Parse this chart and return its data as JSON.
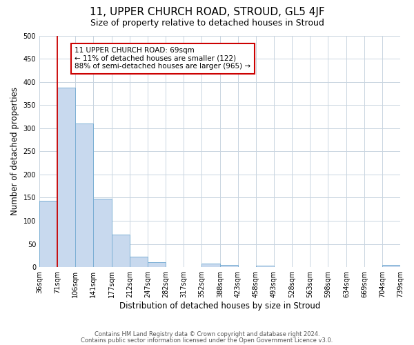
{
  "title": "11, UPPER CHURCH ROAD, STROUD, GL5 4JF",
  "subtitle": "Size of property relative to detached houses in Stroud",
  "xlabel": "Distribution of detached houses by size in Stroud",
  "ylabel": "Number of detached properties",
  "bin_edges": [
    36,
    71,
    106,
    141,
    177,
    212,
    247,
    282,
    317,
    352,
    388,
    423,
    458,
    493,
    528,
    563,
    598,
    634,
    669,
    704,
    739
  ],
  "bar_heights": [
    144,
    387,
    310,
    148,
    70,
    23,
    10,
    0,
    0,
    8,
    5,
    0,
    4,
    0,
    0,
    0,
    0,
    0,
    0,
    5
  ],
  "bar_color": "#c8d9ee",
  "bar_edge_color": "#7bafd4",
  "tick_labels": [
    "36sqm",
    "71sqm",
    "106sqm",
    "141sqm",
    "177sqm",
    "212sqm",
    "247sqm",
    "282sqm",
    "317sqm",
    "352sqm",
    "388sqm",
    "423sqm",
    "458sqm",
    "493sqm",
    "528sqm",
    "563sqm",
    "598sqm",
    "634sqm",
    "669sqm",
    "704sqm",
    "739sqm"
  ],
  "ylim": [
    0,
    500
  ],
  "yticks": [
    0,
    50,
    100,
    150,
    200,
    250,
    300,
    350,
    400,
    450,
    500
  ],
  "red_line_x": 71,
  "annotation_text": "11 UPPER CHURCH ROAD: 69sqm\n← 11% of detached houses are smaller (122)\n88% of semi-detached houses are larger (965) →",
  "annotation_box_color": "#ffffff",
  "annotation_box_edge_color": "#cc0000",
  "footer_line1": "Contains HM Land Registry data © Crown copyright and database right 2024.",
  "footer_line2": "Contains public sector information licensed under the Open Government Licence v3.0.",
  "bg_color": "#ffffff",
  "grid_color": "#c8d4e0",
  "title_fontsize": 11,
  "subtitle_fontsize": 9,
  "axis_label_fontsize": 8.5,
  "tick_fontsize": 7,
  "annotation_fontsize": 7.5,
  "footer_fontsize": 6
}
